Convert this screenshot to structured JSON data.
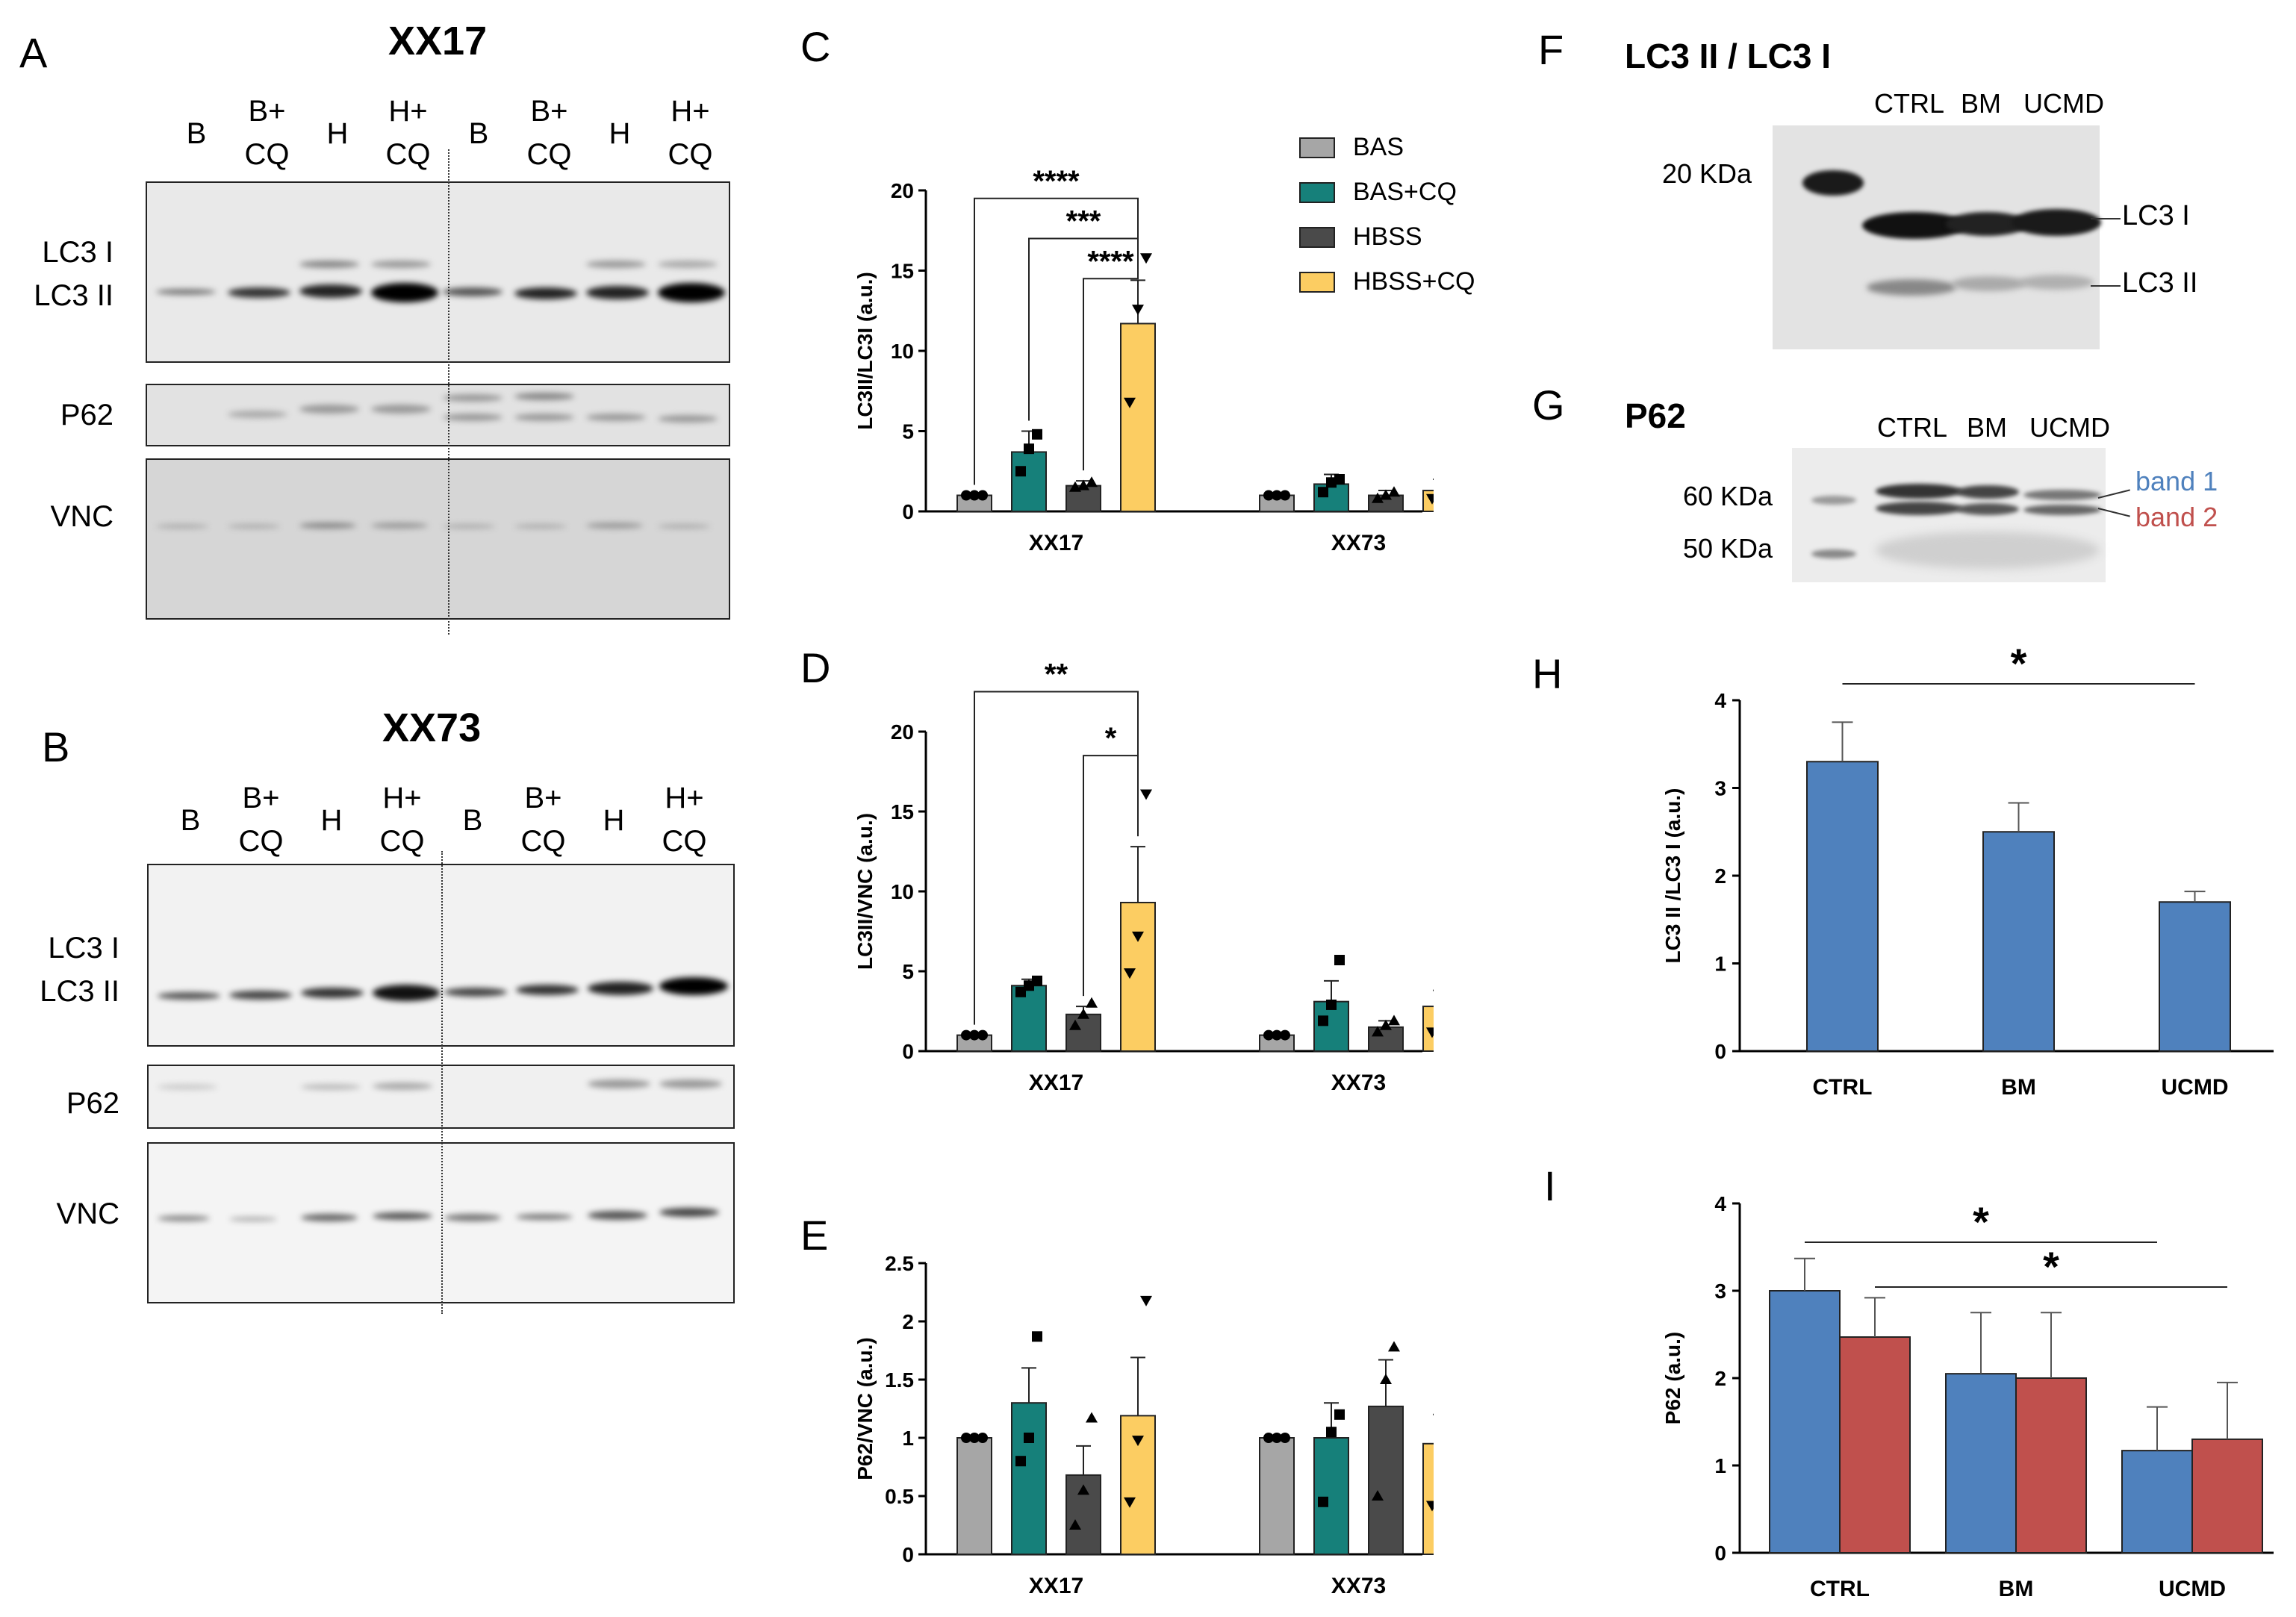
{
  "panels": {
    "A": "A",
    "B": "B",
    "C": "C",
    "D": "D",
    "E": "E",
    "F": "F",
    "G": "G",
    "H": "H",
    "I": "I"
  },
  "blotA": {
    "title": "XX17",
    "lanes": [
      [
        "B",
        ""
      ],
      [
        "B+",
        "CQ"
      ],
      [
        "H",
        ""
      ],
      [
        "H+",
        "CQ"
      ],
      [
        "B",
        ""
      ],
      [
        "B+",
        "CQ"
      ],
      [
        "H",
        ""
      ],
      [
        "H+",
        "CQ"
      ]
    ],
    "rows": [
      "LC3 I",
      "LC3 II",
      "P62",
      "VNC"
    ]
  },
  "blotB": {
    "title": "XX73",
    "lanes": [
      [
        "B",
        ""
      ],
      [
        "B+",
        "CQ"
      ],
      [
        "H",
        ""
      ],
      [
        "H+",
        "CQ"
      ],
      [
        "B",
        ""
      ],
      [
        "B+",
        "CQ"
      ],
      [
        "H",
        ""
      ],
      [
        "H+",
        "CQ"
      ]
    ],
    "rows": [
      "LC3 I",
      "LC3 II",
      "P62",
      "VNC"
    ]
  },
  "legend": [
    {
      "name": "BAS",
      "color": "#a6a6a6"
    },
    {
      "name": "BAS+CQ",
      "color": "#16807a"
    },
    {
      "name": "HBSS",
      "color": "#4a4a4a"
    },
    {
      "name": "HBSS+CQ",
      "color": "#fccd62"
    }
  ],
  "chart_data": [
    {
      "id": "C",
      "type": "bar",
      "ylabel": "LC3II/LC3I (a.u.)",
      "ylim": [
        0,
        20
      ],
      "yticks": [
        "0",
        "5",
        "10",
        "15",
        "20"
      ],
      "categories": [
        "XX17",
        "XX73"
      ],
      "series": [
        {
          "name": "BAS",
          "values": [
            1.0,
            1.0
          ]
        },
        {
          "name": "BAS+CQ",
          "values": [
            3.7,
            1.7
          ]
        },
        {
          "name": "HBSS",
          "values": [
            1.6,
            1.0
          ]
        },
        {
          "name": "HBSS+CQ",
          "values": [
            11.7,
            1.3
          ]
        }
      ],
      "errors": [
        [
          0,
          0
        ],
        [
          1.3,
          0.6
        ],
        [
          0.3,
          0.3
        ],
        [
          2.7,
          0.7
        ]
      ],
      "points": [
        [
          [
            1,
            1,
            1
          ],
          [
            1,
            1,
            1
          ]
        ],
        [
          [
            2.5,
            3.9,
            4.8
          ],
          [
            1.2,
            1.8,
            2.0
          ]
        ],
        [
          [
            1.5,
            1.6,
            1.8
          ],
          [
            0.8,
            1.0,
            1.2
          ]
        ],
        [
          [
            6.8,
            12.6,
            15.8
          ],
          [
            0.8,
            1.3,
            2.0
          ]
        ]
      ],
      "markers": [
        "circle",
        "square",
        "triangle",
        "triangle-down"
      ],
      "sig": [
        {
          "label": "****",
          "from": 0,
          "to": 3,
          "y": 19.5
        },
        {
          "label": "***",
          "from": 1,
          "to": 3,
          "y": 17
        },
        {
          "label": "****",
          "from": 2,
          "to": 3,
          "y": 14.5
        }
      ]
    },
    {
      "id": "D",
      "type": "bar",
      "ylabel": "LC3II/VNC  (a.u.)",
      "ylim": [
        0,
        20
      ],
      "yticks": [
        "0",
        "5",
        "10",
        "15",
        "20"
      ],
      "categories": [
        "XX17",
        "XX73"
      ],
      "series": [
        {
          "name": "BAS",
          "values": [
            1.0,
            1.0
          ]
        },
        {
          "name": "BAS+CQ",
          "values": [
            4.1,
            3.1
          ]
        },
        {
          "name": "HBSS",
          "values": [
            2.3,
            1.5
          ]
        },
        {
          "name": "HBSS+CQ",
          "values": [
            9.3,
            2.8
          ]
        }
      ],
      "errors": [
        [
          0,
          0
        ],
        [
          0.4,
          1.3
        ],
        [
          0.5,
          0.4
        ],
        [
          3.5,
          1.0
        ]
      ],
      "points": [
        [
          [
            1,
            1,
            1
          ],
          [
            1,
            1,
            1
          ]
        ],
        [
          [
            3.7,
            4.1,
            4.4
          ],
          [
            1.9,
            2.9,
            5.7
          ]
        ],
        [
          [
            1.6,
            2.3,
            3.0
          ],
          [
            1.2,
            1.6,
            1.9
          ]
        ],
        [
          [
            4.9,
            7.2,
            16.1
          ],
          [
            1.2,
            3.3,
            4.2
          ]
        ]
      ],
      "markers": [
        "circle",
        "square",
        "triangle",
        "triangle-down"
      ],
      "sig": [
        {
          "label": "**",
          "from": 0,
          "to": 3,
          "y": 22.5
        },
        {
          "label": "*",
          "from": 2,
          "to": 3,
          "y": 18.5
        }
      ]
    },
    {
      "id": "E",
      "type": "bar",
      "ylabel": "P62/VNC (a.u.)",
      "ylim": [
        0,
        2.5
      ],
      "yticks": [
        "0",
        "0.5",
        "1",
        "1.5",
        "2",
        "2.5"
      ],
      "categories": [
        "XX17",
        "XX73"
      ],
      "series": [
        {
          "name": "BAS",
          "values": [
            1.0,
            1.0
          ]
        },
        {
          "name": "BAS+CQ",
          "values": [
            1.3,
            1.0
          ]
        },
        {
          "name": "HBSS",
          "values": [
            0.68,
            1.27
          ]
        },
        {
          "name": "HBSS+CQ",
          "values": [
            1.19,
            0.95
          ]
        }
      ],
      "errors": [
        [
          0,
          0
        ],
        [
          0.3,
          0.3
        ],
        [
          0.25,
          0.4
        ],
        [
          0.5,
          0.25
        ]
      ],
      "points": [
        [
          [
            1,
            1,
            1
          ],
          [
            1,
            1,
            1
          ]
        ],
        [
          [
            0.8,
            1.0,
            1.87
          ],
          [
            0.45,
            1.05,
            1.2
          ]
        ],
        [
          [
            0.25,
            0.55,
            1.17
          ],
          [
            0.5,
            1.5,
            1.78
          ]
        ],
        [
          [
            0.45,
            0.98,
            2.18
          ],
          [
            0.42,
            1.25,
            1.25
          ]
        ]
      ],
      "markers": [
        "circle",
        "square",
        "triangle",
        "triangle-down"
      ],
      "sig": []
    },
    {
      "id": "H",
      "type": "bar",
      "ylabel": "LC3 II /LC3 I (a.u.)",
      "ylim": [
        0,
        4
      ],
      "yticks": [
        "0",
        "1",
        "2",
        "3",
        "4"
      ],
      "categories": [
        "CTRL",
        "BM",
        "UCMD"
      ],
      "series": [
        {
          "name": "LC3 II/LC3 I",
          "values": [
            3.3,
            2.5,
            1.7
          ]
        }
      ],
      "errors": [
        [
          0.45,
          0.33,
          0.12
        ]
      ],
      "sig": [
        {
          "label": "*",
          "from": 0,
          "to": 2
        }
      ]
    },
    {
      "id": "I",
      "type": "bar",
      "ylabel": "P62 (a.u.)",
      "ylim": [
        0,
        4
      ],
      "yticks": [
        "0",
        "1",
        "2",
        "3",
        "4"
      ],
      "categories": [
        "CTRL",
        "BM",
        "UCMD"
      ],
      "series": [
        {
          "name": "band 1",
          "values": [
            3.0,
            2.05,
            1.17
          ]
        },
        {
          "name": "band 2",
          "values": [
            2.47,
            2.0,
            1.3
          ]
        }
      ],
      "errors": [
        [
          0.37,
          0.7,
          0.5
        ],
        [
          0.45,
          0.75,
          0.65
        ]
      ],
      "sig": [
        {
          "label": "*",
          "from": 0,
          "to": 2,
          "series": 0
        },
        {
          "label": "*",
          "from": 0,
          "to": 2,
          "series": 1
        }
      ]
    }
  ],
  "blotF": {
    "title": "LC3 II / LC3 I",
    "lanes": [
      "CTRL",
      "BM",
      "UCMD"
    ],
    "marker": "20 KDa",
    "bands": [
      "LC3 I",
      "LC3 II"
    ]
  },
  "blotG": {
    "title": "P62",
    "lanes": [
      "CTRL",
      "BM",
      "UCMD"
    ],
    "markers": [
      "60 KDa",
      "50 KDa"
    ],
    "bands": [
      "band 1",
      "band 2"
    ]
  },
  "colors": {
    "blue": "#4f81bd",
    "red": "#c0504d",
    "band1text": "#4f81bd",
    "band2text": "#c0504d"
  }
}
